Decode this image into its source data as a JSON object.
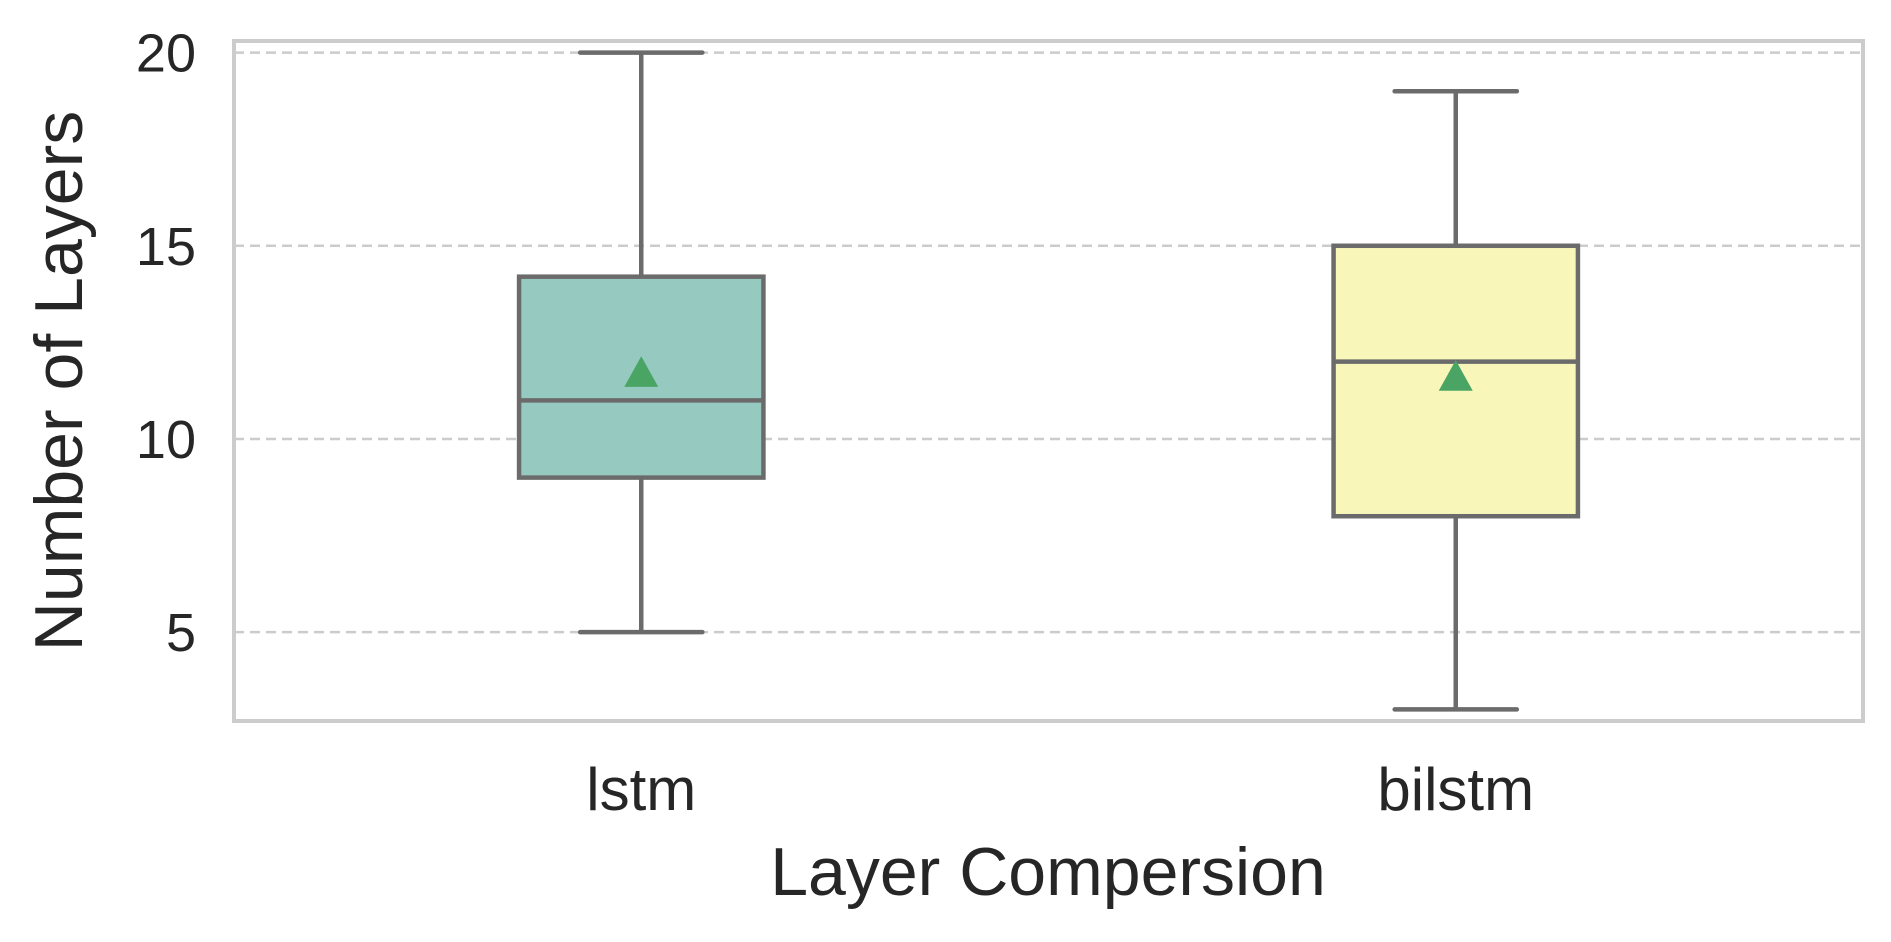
{
  "chart_data": {
    "type": "box",
    "xlabel": "Layer Compersion",
    "ylabel": "Number of Layers",
    "ylim": [
      2.7,
      20.3
    ],
    "yticks": [
      5,
      10,
      15,
      20
    ],
    "grid": "y-dashed",
    "categories": [
      "lstm",
      "bilstm"
    ],
    "boxes": [
      {
        "category": "lstm",
        "whislo": 5,
        "q1": 9,
        "median": 11,
        "q3": 14.2,
        "whishi": 20,
        "mean": 11.7,
        "color": "#96cac0"
      },
      {
        "category": "bilstm",
        "whislo": 3,
        "q1": 8,
        "median": 12,
        "q3": 15,
        "whishi": 19,
        "mean": 11.6,
        "color": "#f8f7b9"
      }
    ],
    "colors": {
      "line": "#6b6b6b",
      "mean_marker": "#4aa564",
      "grid": "#cccccc",
      "frame": "#cccccc"
    }
  }
}
